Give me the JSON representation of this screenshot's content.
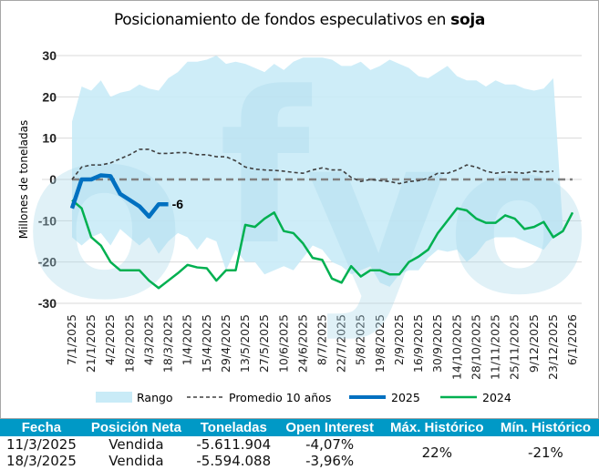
{
  "title_prefix": "Posicionamiento de fondos especulativos en ",
  "title_bold": "soja",
  "chart_data": {
    "type": "line",
    "title": "Posicionamiento de fondos especulativos en soja",
    "ylabel": "Millones de toneladas",
    "xlabel": "",
    "ylim": [
      -30,
      30
    ],
    "yticks": [
      30,
      20,
      10,
      0,
      -10,
      -20,
      -30
    ],
    "grid": true,
    "x_weeks": 53,
    "xtick_labels": [
      "7/1/2025",
      "21/1/2025",
      "4/2/2025",
      "18/2/2025",
      "4/3/2025",
      "18/3/2025",
      "1/4/2025",
      "15/4/2025",
      "29/4/2025",
      "13/5/2025",
      "27/5/2025",
      "10/6/2025",
      "24/6/2025",
      "8/7/2025",
      "22/7/2025",
      "5/8/2025",
      "19/8/2025",
      "2/9/2025",
      "16/9/2025",
      "30/9/2025",
      "14/10/2025",
      "28/10/2025",
      "11/11/2025",
      "25/11/2025",
      "9/12/2025",
      "23/12/2025",
      "6/1/2026"
    ],
    "legend_position": "bottom",
    "series": [
      {
        "name": "Rango",
        "type": "area",
        "color": "#c9ebf7",
        "upper": [
          14,
          22.5,
          21.5,
          24,
          20,
          21,
          21.5,
          23,
          22,
          21.5,
          24.5,
          26,
          28.5,
          28.5,
          29,
          30,
          28,
          28.5,
          28,
          27,
          26,
          28,
          26.5,
          28.5,
          29.5,
          29.5,
          29.5,
          29,
          27.5,
          27.5,
          28.5,
          26.5,
          27.5,
          29,
          28,
          27,
          25,
          24.5,
          26,
          27.5,
          25,
          24,
          24,
          22.5,
          24,
          23,
          23,
          22,
          21.5,
          22,
          24.5,
          -12
        ],
        "lower": [
          -14,
          -16,
          -14,
          -13,
          -16,
          -12,
          -14,
          -16,
          -14,
          -18,
          -15,
          -13,
          -14,
          -17,
          -14,
          -15,
          -22,
          -17,
          -20,
          -20,
          -23,
          -22,
          -21,
          -22,
          -19,
          -16,
          -17,
          -20,
          -21,
          -23,
          -22,
          -21,
          -25,
          -26,
          -23,
          -22,
          -22,
          -19,
          -17,
          -17.5,
          -17,
          -20,
          -18,
          -15,
          -14,
          -14,
          -14,
          -15,
          -16,
          -17,
          -14,
          -12
        ]
      },
      {
        "name": "Promedio 10 años",
        "type": "line",
        "color": "#404040",
        "values": [
          0,
          3,
          3.5,
          3.5,
          4,
          5,
          6,
          7.3,
          7.3,
          6.3,
          6.3,
          6.5,
          6.5,
          6,
          6,
          5.5,
          5.5,
          4.5,
          3,
          2.5,
          2.3,
          2.2,
          2,
          1.7,
          1.5,
          2.3,
          2.8,
          2.3,
          2.3,
          0.5,
          -0.5,
          0,
          -0.3,
          -0.5,
          -1,
          -0.5,
          -0.3,
          0.3,
          1.5,
          1.5,
          2.3,
          3.5,
          3,
          2,
          1.5,
          1.8,
          1.7,
          1.5,
          2,
          1.8,
          2
        ]
      },
      {
        "name": "2025",
        "type": "line",
        "color": "#0070c0",
        "values": [
          -7,
          0,
          0,
          1,
          0.8,
          -3.5,
          -5,
          -6.5,
          -9,
          -6,
          -6
        ],
        "last_label": "-6"
      },
      {
        "name": "2024",
        "type": "line",
        "color": "#00b050",
        "values": [
          -5,
          -7,
          -14,
          -16,
          -20,
          -22,
          -22,
          -22,
          -24.5,
          -26.3,
          -24.5,
          -22.7,
          -20.7,
          -21.3,
          -21.5,
          -24.5,
          -22,
          -22,
          -11,
          -11.5,
          -9.5,
          -8,
          -12.5,
          -13,
          -15.5,
          -19,
          -19.5,
          -24,
          -25,
          -21,
          -23.5,
          -22,
          -22,
          -23,
          -23,
          -20,
          -18.7,
          -17,
          -13,
          -10,
          -7,
          -7.5,
          -9.5,
          -10.5,
          -10.5,
          -8.7,
          -9.5,
          -12,
          -11.5,
          -10.3,
          -14,
          -12.5,
          -8
        ]
      }
    ]
  },
  "table": {
    "headers": [
      "Fecha",
      "Posición Neta",
      "Toneladas",
      "Open Interest",
      "Máx. Histórico",
      "Mín. Histórico"
    ],
    "rows": [
      {
        "fecha": "11/3/2025",
        "posicion": "Vendida",
        "toneladas": "-5.611.904",
        "oi": "-4,07%"
      },
      {
        "fecha": "18/3/2025",
        "posicion": "Vendida",
        "toneladas": "-5.594.088",
        "oi": "-3,96%"
      }
    ],
    "max_historico": "22%",
    "min_historico": "-21%"
  }
}
